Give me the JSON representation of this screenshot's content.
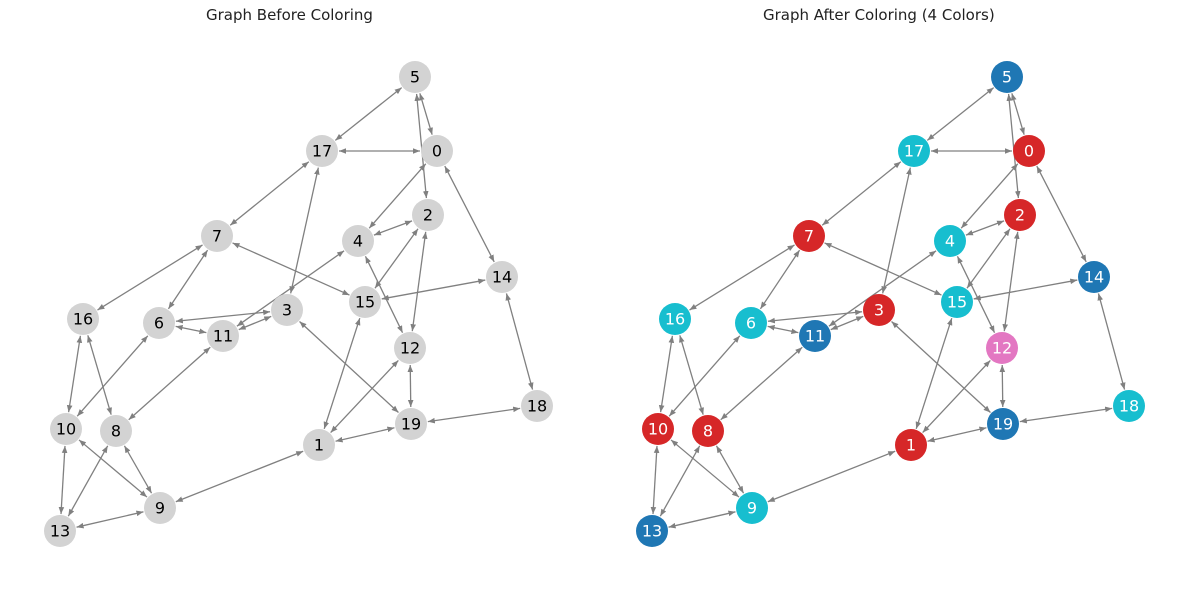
{
  "titles": {
    "before": "Graph Before Coloring",
    "after": "Graph After Coloring (4 Colors)"
  },
  "colors": {
    "uncolored": "#d3d3d3",
    "edge": "#808080",
    "red": "#d62728",
    "blue": "#1f77b4",
    "cyan": "#17becf",
    "pink": "#e377c2"
  },
  "nodes": [
    {
      "id": "0",
      "color": "red"
    },
    {
      "id": "1",
      "color": "red"
    },
    {
      "id": "2",
      "color": "red"
    },
    {
      "id": "3",
      "color": "red"
    },
    {
      "id": "4",
      "color": "cyan"
    },
    {
      "id": "5",
      "color": "blue"
    },
    {
      "id": "6",
      "color": "cyan"
    },
    {
      "id": "7",
      "color": "red"
    },
    {
      "id": "8",
      "color": "red"
    },
    {
      "id": "9",
      "color": "cyan"
    },
    {
      "id": "10",
      "color": "red"
    },
    {
      "id": "11",
      "color": "blue"
    },
    {
      "id": "12",
      "color": "pink"
    },
    {
      "id": "13",
      "color": "blue"
    },
    {
      "id": "14",
      "color": "blue"
    },
    {
      "id": "15",
      "color": "cyan"
    },
    {
      "id": "16",
      "color": "cyan"
    },
    {
      "id": "17",
      "color": "cyan"
    },
    {
      "id": "18",
      "color": "cyan"
    },
    {
      "id": "19",
      "color": "blue"
    }
  ],
  "edges": [
    [
      "5",
      "17"
    ],
    [
      "5",
      "0"
    ],
    [
      "5",
      "2"
    ],
    [
      "17",
      "0"
    ],
    [
      "17",
      "7"
    ],
    [
      "17",
      "3"
    ],
    [
      "0",
      "4"
    ],
    [
      "0",
      "14"
    ],
    [
      "2",
      "4"
    ],
    [
      "2",
      "15"
    ],
    [
      "2",
      "12"
    ],
    [
      "4",
      "11"
    ],
    [
      "4",
      "12"
    ],
    [
      "7",
      "16"
    ],
    [
      "7",
      "6"
    ],
    [
      "7",
      "15"
    ],
    [
      "15",
      "14"
    ],
    [
      "15",
      "1"
    ],
    [
      "14",
      "18"
    ],
    [
      "18",
      "19"
    ],
    [
      "3",
      "6"
    ],
    [
      "3",
      "11"
    ],
    [
      "3",
      "19"
    ],
    [
      "6",
      "11"
    ],
    [
      "6",
      "10"
    ],
    [
      "11",
      "8"
    ],
    [
      "16",
      "10"
    ],
    [
      "16",
      "8"
    ],
    [
      "12",
      "19"
    ],
    [
      "12",
      "1"
    ],
    [
      "19",
      "1"
    ],
    [
      "10",
      "13"
    ],
    [
      "10",
      "9"
    ],
    [
      "8",
      "13"
    ],
    [
      "8",
      "9"
    ],
    [
      "9",
      "13"
    ],
    [
      "9",
      "1"
    ]
  ]
}
